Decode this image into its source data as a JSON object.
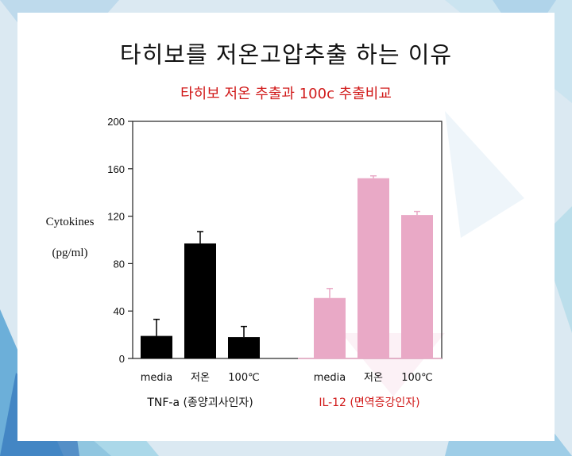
{
  "title": "타히보를 저온고압추출 하는 이유",
  "subtitle": "타히보 저온 추출과 100c 추출비교",
  "chart_data": {
    "type": "bar",
    "ylabel_line1": "Cytokines",
    "ylabel_line2": "(pg/ml)",
    "ylim": [
      0,
      200
    ],
    "yticks": [
      "0",
      "40",
      "80",
      "120",
      "160",
      "200"
    ],
    "groups": [
      {
        "name": "TNF-a (종양괴사인자)",
        "color": "#000000",
        "label_color": "#111111",
        "categories": [
          "media",
          "저온",
          "100℃"
        ],
        "values": [
          19,
          97,
          18
        ],
        "errors": [
          14,
          10,
          9
        ]
      },
      {
        "name": "IL-12 (면역증강인자)",
        "color": "#e9a9c6",
        "label_color": "#d11a1a",
        "categories": [
          "media",
          "저온",
          "100℃"
        ],
        "values": [
          51,
          152,
          121
        ],
        "errors": [
          8,
          2,
          3
        ]
      }
    ]
  }
}
